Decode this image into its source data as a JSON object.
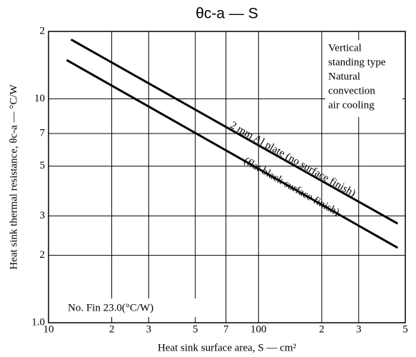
{
  "chart_data": {
    "type": "line",
    "title": "θc-a — S",
    "x_label": "Heat sink surface area, S — cm²",
    "y_label": "Heat sink thermal resistance, θc-a — °C/W",
    "log_x": true,
    "log_y": true,
    "grid": true,
    "xlim": [
      10,
      500
    ],
    "ylim": [
      1,
      20
    ],
    "xticks": [
      10,
      {
        "value": 20,
        "label": "2"
      },
      {
        "value": 30,
        "label": "3"
      },
      {
        "value": 50,
        "label": "5"
      },
      {
        "value": 70,
        "label": "7"
      },
      100,
      {
        "value": 200,
        "label": "2"
      },
      {
        "value": 300,
        "label": "3"
      },
      {
        "value": 500,
        "label": "5"
      }
    ],
    "yticks": [
      {
        "value": 1,
        "label": "1.0"
      },
      2,
      3,
      5,
      7,
      10,
      {
        "value": 20,
        "label": "2"
      }
    ],
    "series": [
      {
        "name": "2 mm Al plate (no surface finish)",
        "color": "#000000",
        "x": [
          12.8,
          100,
          460
        ],
        "values": [
          18.4,
          6.2,
          2.77
        ]
      },
      {
        "name": "(flat black surface finish)",
        "color": "#000000",
        "x": [
          12.2,
          100,
          460
        ],
        "values": [
          14.9,
          4.87,
          2.16
        ]
      }
    ],
    "annotations": [
      "Vertical",
      "standing type",
      "Natural",
      "convection",
      "air cooling"
    ],
    "note": "No. Fin  23.0(°C/W)"
  }
}
